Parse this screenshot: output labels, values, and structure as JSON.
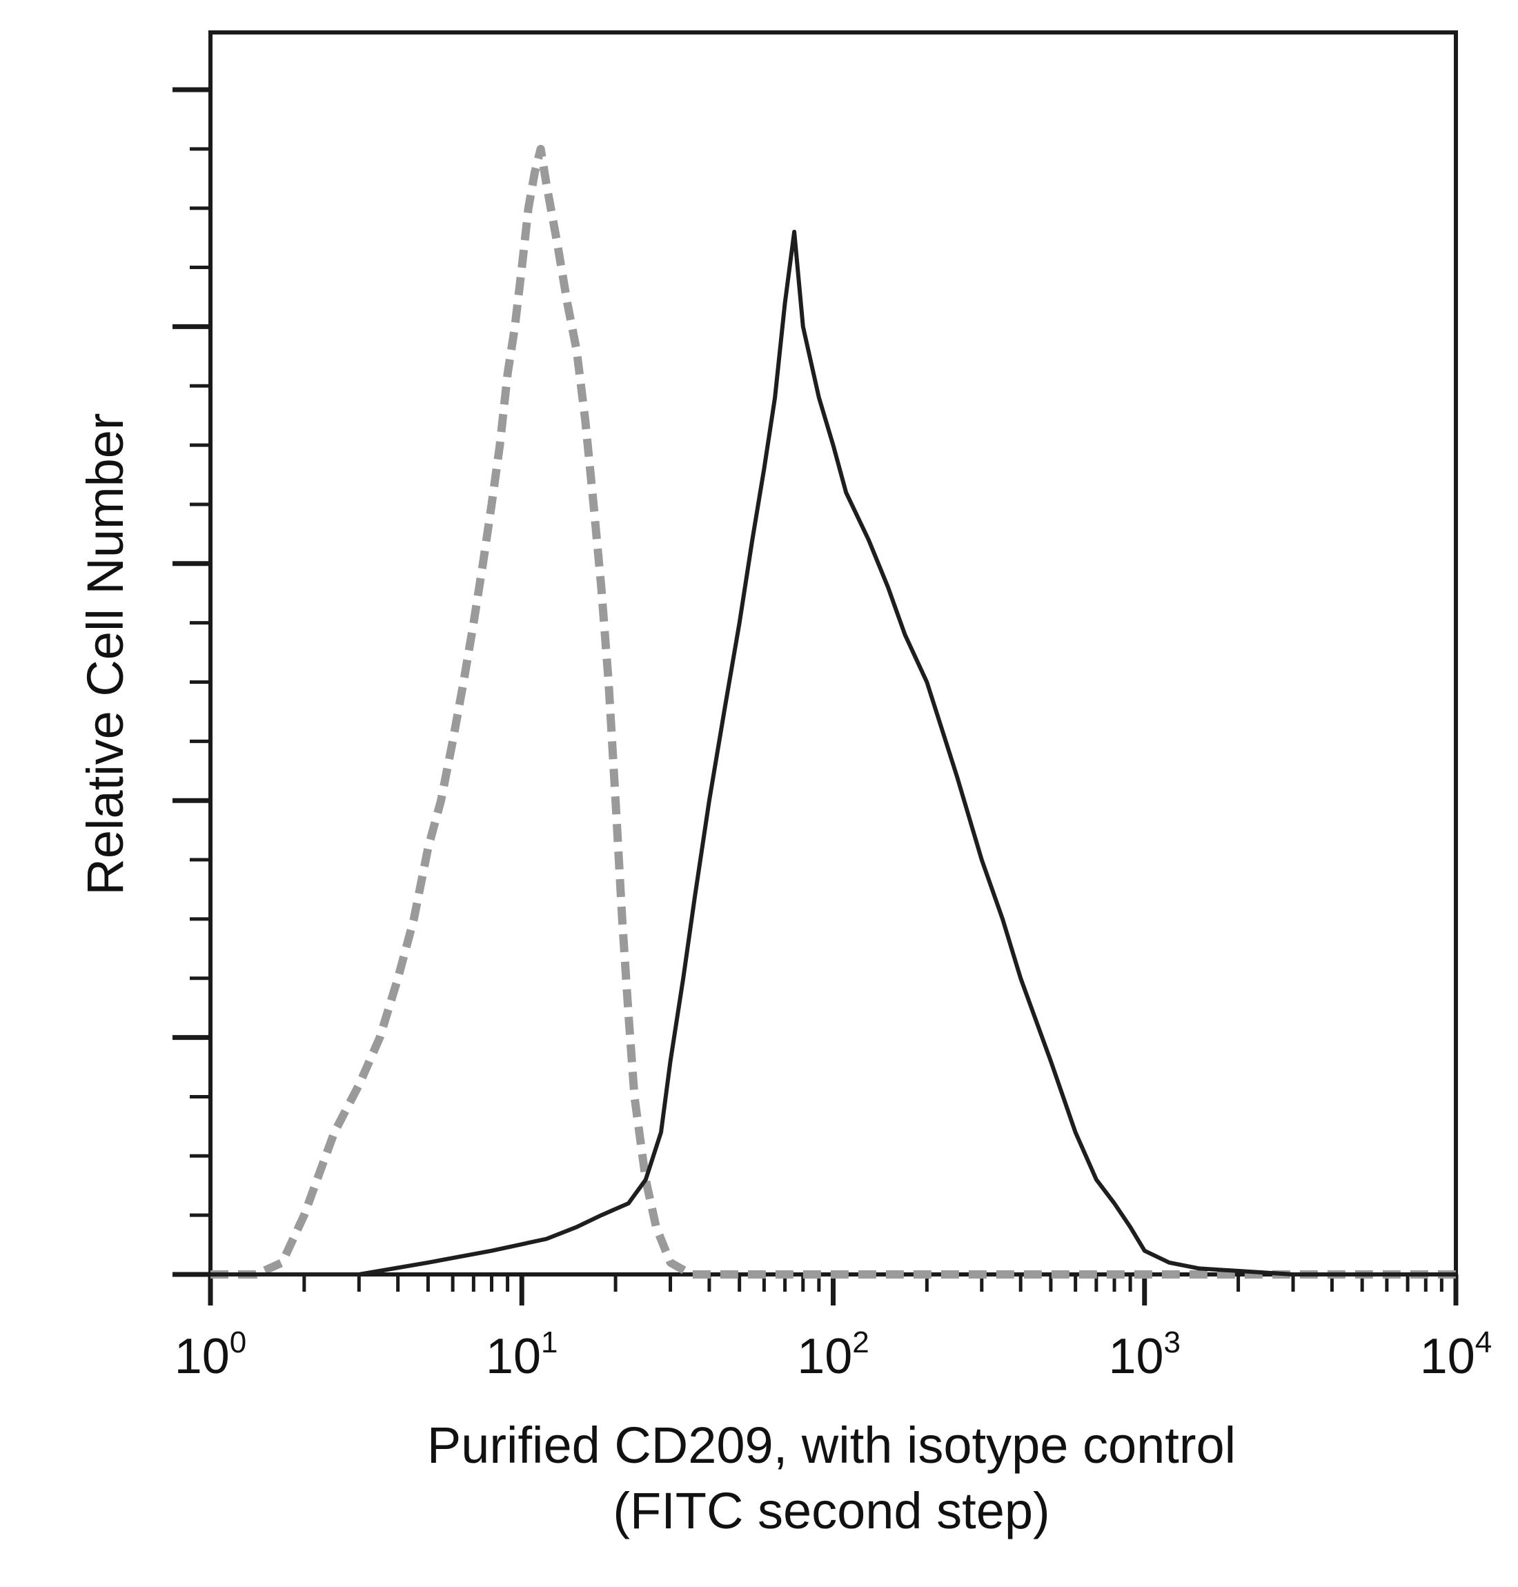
{
  "chart_data": {
    "type": "area",
    "title": "",
    "xlabel": "Purified CD209, with isotype control",
    "xlabel_line2": "(FITC second step)",
    "ylabel": "Relative Cell Number",
    "xscale": "log",
    "xlim": [
      1,
      10000
    ],
    "ylim": [
      0,
      100
    ],
    "x_ticks": [
      {
        "base": "10",
        "exp": "0",
        "value": 1
      },
      {
        "base": "10",
        "exp": "1",
        "value": 10
      },
      {
        "base": "10",
        "exp": "2",
        "value": 100
      },
      {
        "base": "10",
        "exp": "3",
        "value": 1000
      },
      {
        "base": "10",
        "exp": "4",
        "value": 10000
      }
    ],
    "y_tick_labels": "none",
    "grid": false,
    "legend": "none",
    "series": [
      {
        "style": "dashed",
        "color": "#9a9a9a",
        "points": [
          [
            1.0,
            0
          ],
          [
            1.4,
            0
          ],
          [
            1.7,
            1
          ],
          [
            2.0,
            5
          ],
          [
            2.2,
            8
          ],
          [
            2.5,
            12
          ],
          [
            3.0,
            16
          ],
          [
            3.5,
            20
          ],
          [
            4.0,
            25
          ],
          [
            4.5,
            30
          ],
          [
            5.0,
            36
          ],
          [
            5.5,
            40
          ],
          [
            6.0,
            45
          ],
          [
            6.5,
            50
          ],
          [
            7.0,
            55
          ],
          [
            7.5,
            60
          ],
          [
            8.0,
            65
          ],
          [
            8.5,
            70
          ],
          [
            9.0,
            76
          ],
          [
            9.5,
            80
          ],
          [
            10.0,
            85
          ],
          [
            10.5,
            90
          ],
          [
            11.0,
            93
          ],
          [
            11.5,
            95
          ],
          [
            12.0,
            92
          ],
          [
            13.0,
            87
          ],
          [
            14.0,
            82
          ],
          [
            15.0,
            78
          ],
          [
            16.0,
            72
          ],
          [
            17.0,
            65
          ],
          [
            18.0,
            58
          ],
          [
            19.0,
            50
          ],
          [
            20.0,
            40
          ],
          [
            21.0,
            30
          ],
          [
            22.0,
            22
          ],
          [
            23.0,
            15
          ],
          [
            25.0,
            8
          ],
          [
            27.0,
            4
          ],
          [
            30.0,
            1
          ],
          [
            35.0,
            0
          ],
          [
            10000,
            0
          ]
        ]
      },
      {
        "style": "solid",
        "color": "#1e1e1e",
        "points": [
          [
            1.0,
            0
          ],
          [
            3.0,
            0
          ],
          [
            5.0,
            1
          ],
          [
            8.0,
            2
          ],
          [
            12.0,
            3
          ],
          [
            15.0,
            4
          ],
          [
            18.0,
            5
          ],
          [
            22.0,
            6
          ],
          [
            25.0,
            8
          ],
          [
            28.0,
            12
          ],
          [
            30.0,
            18
          ],
          [
            33.0,
            25
          ],
          [
            36.0,
            32
          ],
          [
            40.0,
            40
          ],
          [
            45.0,
            48
          ],
          [
            50.0,
            55
          ],
          [
            55.0,
            62
          ],
          [
            60.0,
            68
          ],
          [
            65.0,
            74
          ],
          [
            70.0,
            82
          ],
          [
            75.0,
            88
          ],
          [
            80.0,
            80
          ],
          [
            90.0,
            74
          ],
          [
            100.0,
            70
          ],
          [
            110.0,
            66
          ],
          [
            130.0,
            62
          ],
          [
            150.0,
            58
          ],
          [
            170.0,
            54
          ],
          [
            200.0,
            50
          ],
          [
            250.0,
            42
          ],
          [
            300.0,
            35
          ],
          [
            350.0,
            30
          ],
          [
            400.0,
            25
          ],
          [
            500.0,
            18
          ],
          [
            600.0,
            12
          ],
          [
            700.0,
            8
          ],
          [
            800.0,
            6
          ],
          [
            900.0,
            4
          ],
          [
            1000.0,
            2
          ],
          [
            1200.0,
            1
          ],
          [
            1500.0,
            0.5
          ],
          [
            3000.0,
            0
          ],
          [
            10000,
            0
          ]
        ]
      }
    ]
  }
}
